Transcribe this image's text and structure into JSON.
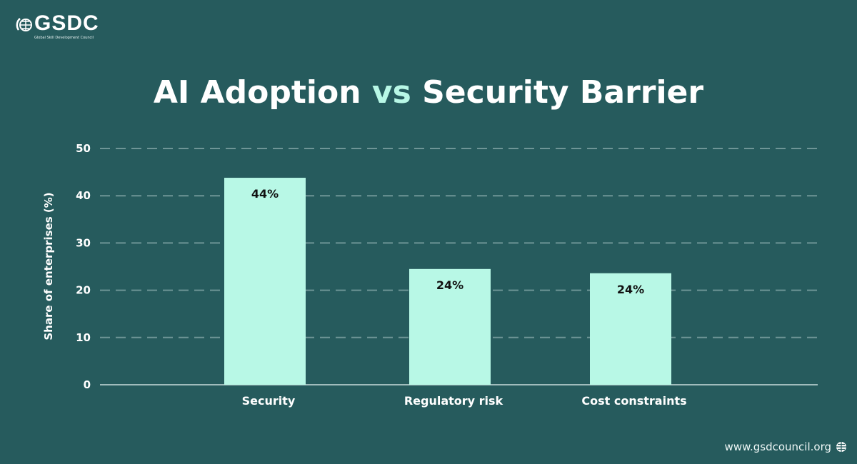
{
  "logo": {
    "name": "GSDC",
    "tagline": "Global Skill Development Council"
  },
  "title": {
    "part1": "AI Adoption",
    "accent": "vs",
    "part2": "Security Barrier"
  },
  "footer": {
    "url": "www.gsdcouncil.org",
    "icon": "globe-icon"
  },
  "colors": {
    "background": "#265b5d",
    "bar": "#b8f8e6",
    "accent": "#b8f8e6"
  },
  "chart_data": {
    "type": "bar",
    "title": "AI Adoption vs Security Barrier",
    "categories": [
      "Security",
      "Regulatory risk",
      "Cost constraints"
    ],
    "values": [
      43.8,
      24.5,
      23.6
    ],
    "data_labels": [
      "44%",
      "24%",
      "24%"
    ],
    "xlabel": "",
    "ylabel": "Share of enterprises (%)",
    "ylim": [
      0,
      50
    ],
    "yticks": [
      0,
      10,
      20,
      30,
      40,
      50
    ],
    "grid": true
  }
}
